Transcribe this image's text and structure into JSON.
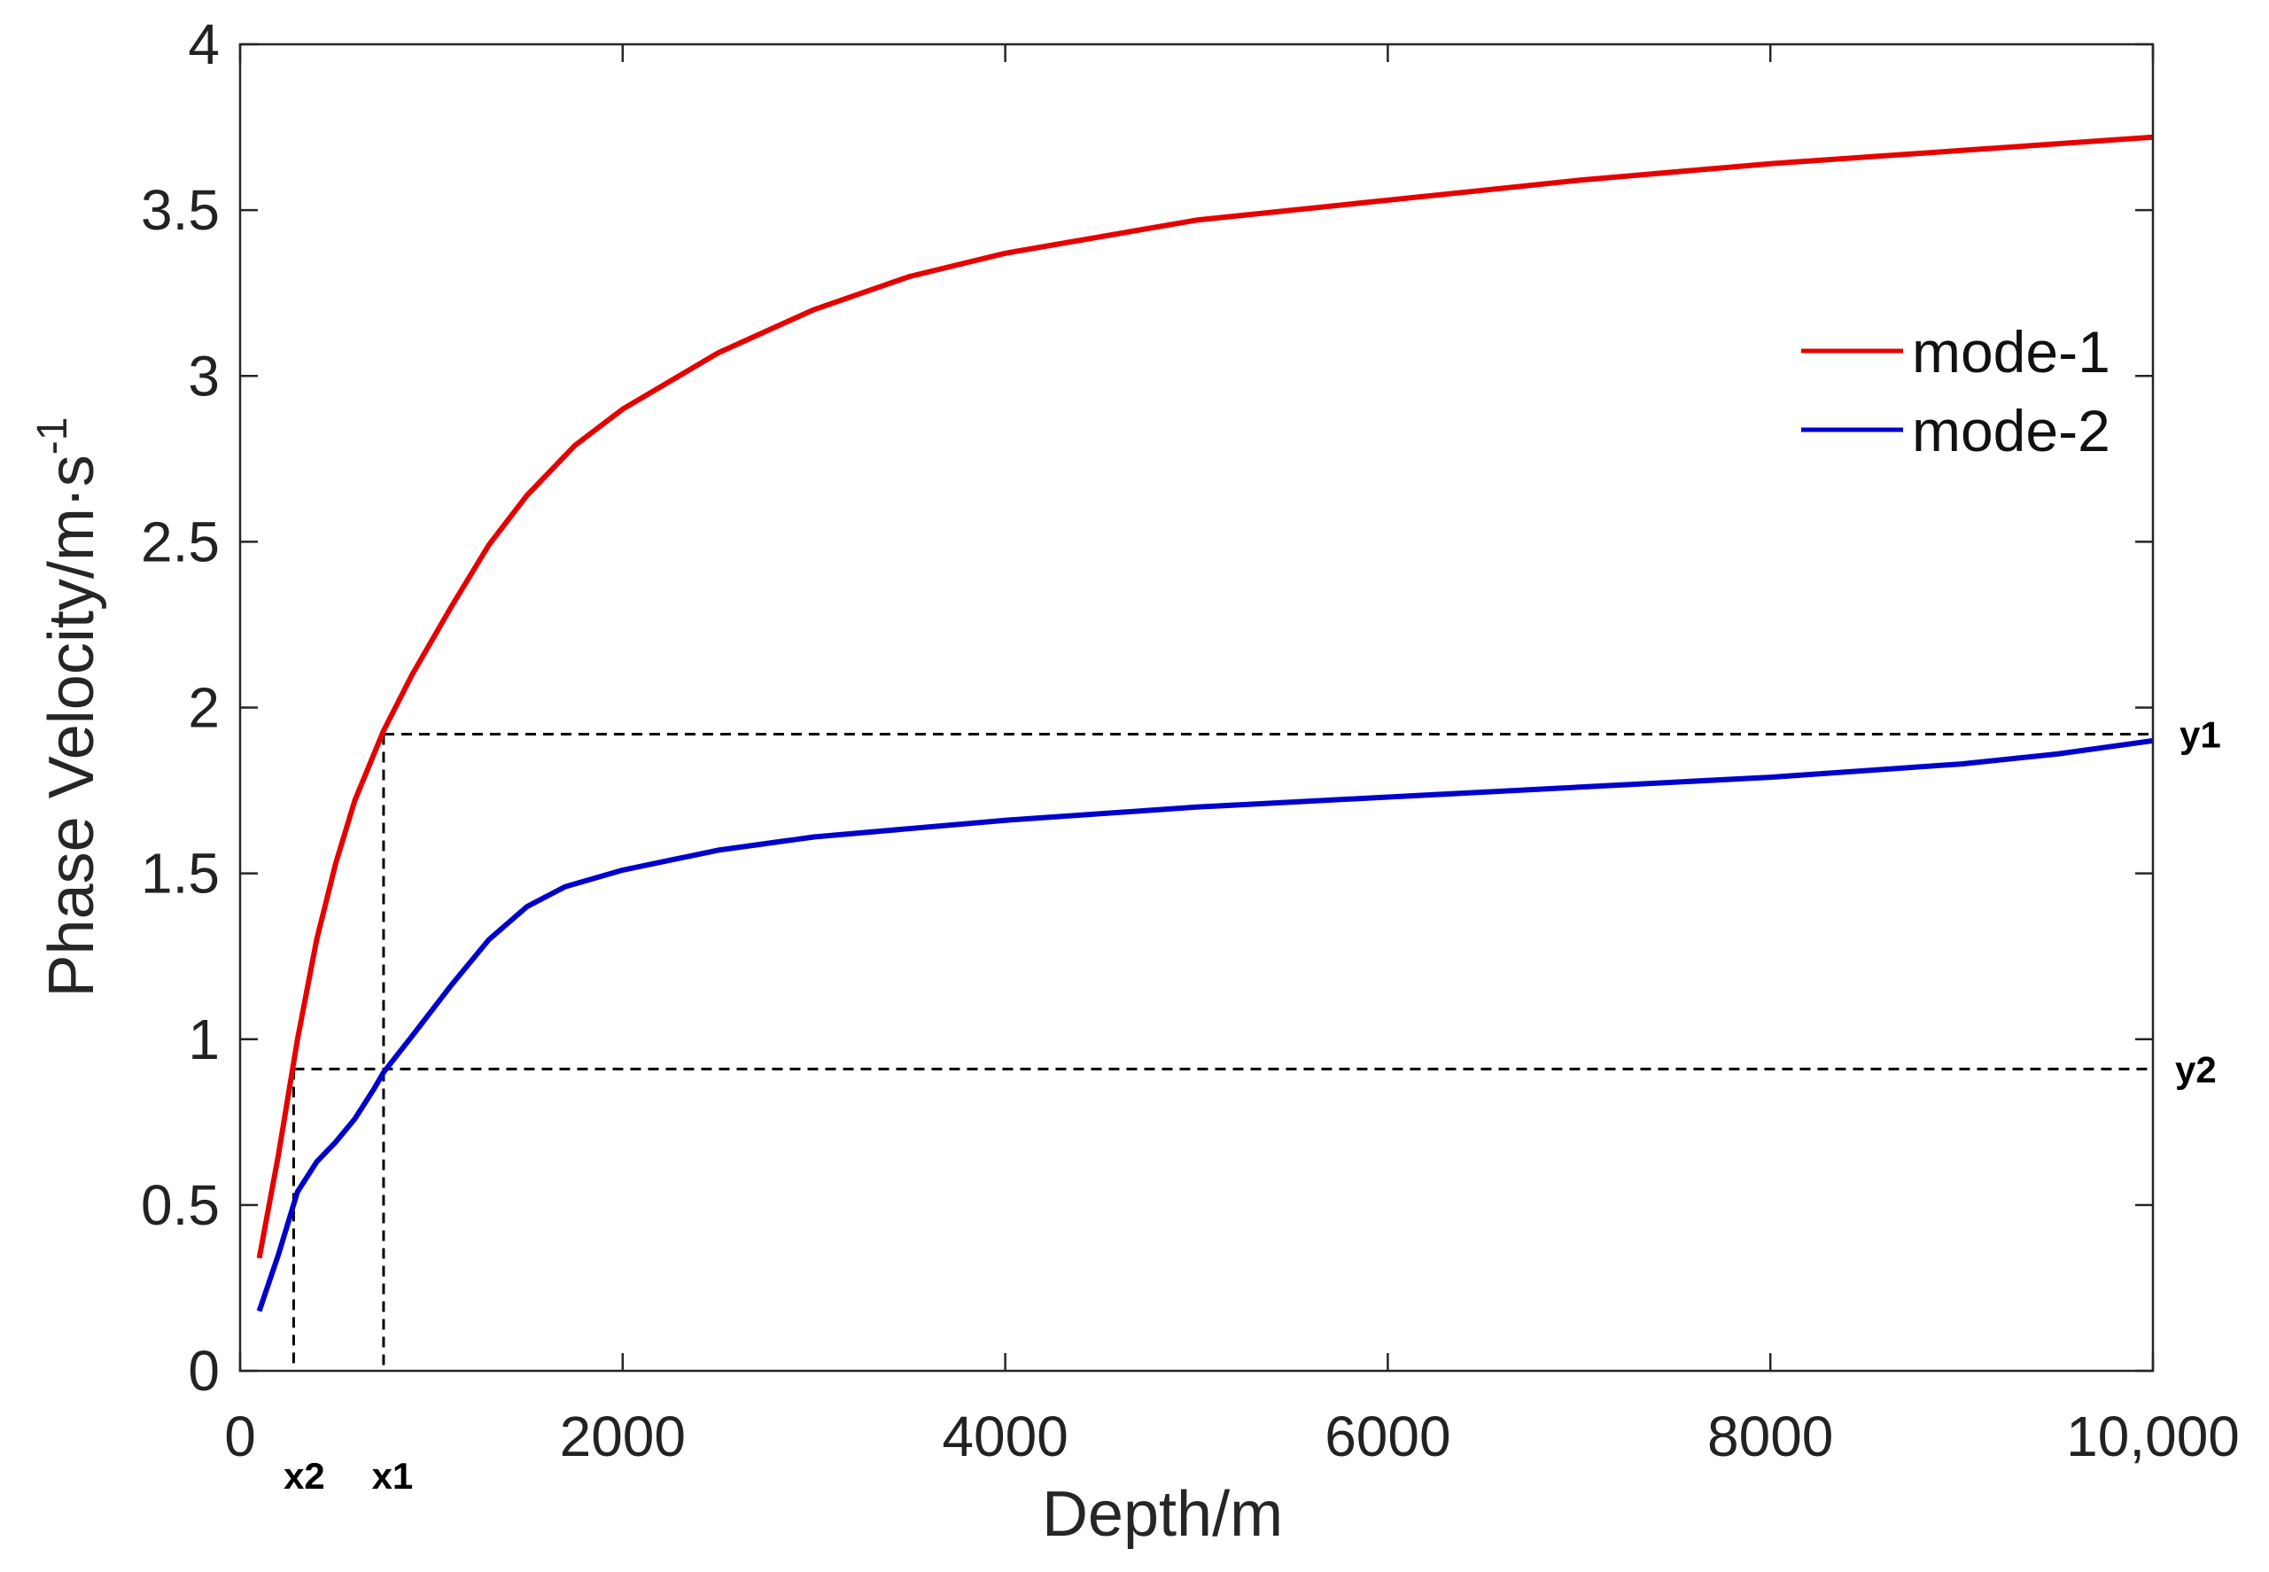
{
  "chart_data": {
    "type": "line",
    "xlabel": "Depth/m",
    "ylabel": "Phase Velocity/m·s",
    "ylabel_superscript": "-1",
    "xlim": [
      0,
      10000
    ],
    "ylim": [
      0,
      4
    ],
    "x_ticks": [
      0,
      2000,
      4000,
      6000,
      8000,
      10000
    ],
    "x_tick_labels": [
      "0",
      "2000",
      "4000",
      "6000",
      "8000",
      "10,000"
    ],
    "y_ticks": [
      0,
      0.5,
      1,
      1.5,
      2,
      2.5,
      3,
      3.5,
      4
    ],
    "y_tick_labels": [
      "0",
      "0.5",
      "1",
      "1.5",
      "2",
      "2.5",
      "3",
      "3.5",
      "4"
    ],
    "grid": false,
    "legend_position": "top-right",
    "series": [
      {
        "name": "mode-1",
        "color": "#e60000",
        "x": [
          100,
          200,
          300,
          400,
          500,
          600,
          700,
          750,
          900,
          1100,
          1300,
          1500,
          1750,
          2000,
          2500,
          3000,
          3500,
          4000,
          5000,
          6000,
          7000,
          8000,
          9000,
          10000
        ],
        "y": [
          0.34,
          0.65,
          1.0,
          1.3,
          1.53,
          1.72,
          1.86,
          1.93,
          2.1,
          2.3,
          2.49,
          2.64,
          2.79,
          2.9,
          3.07,
          3.2,
          3.3,
          3.37,
          3.47,
          3.53,
          3.59,
          3.64,
          3.68,
          3.72
        ]
      },
      {
        "name": "mode-2",
        "color": "#0000cc",
        "x": [
          100,
          200,
          300,
          400,
          500,
          600,
          700,
          750,
          900,
          1100,
          1300,
          1500,
          1700,
          2000,
          2500,
          3000,
          4000,
          5000,
          6000,
          7000,
          8000,
          9000,
          9500,
          10000
        ],
        "y": [
          0.18,
          0.35,
          0.54,
          0.63,
          0.69,
          0.76,
          0.85,
          0.9,
          1.01,
          1.16,
          1.3,
          1.4,
          1.46,
          1.51,
          1.57,
          1.61,
          1.66,
          1.7,
          1.73,
          1.76,
          1.79,
          1.83,
          1.86,
          1.9
        ]
      }
    ],
    "reference_lines": {
      "y1_value": 1.92,
      "y2_value": 0.91,
      "x1_value": 750,
      "x2_value": 280
    },
    "annotations": {
      "y1": "y1",
      "y2": "y2",
      "x1": "x1",
      "x2": "x2"
    }
  }
}
